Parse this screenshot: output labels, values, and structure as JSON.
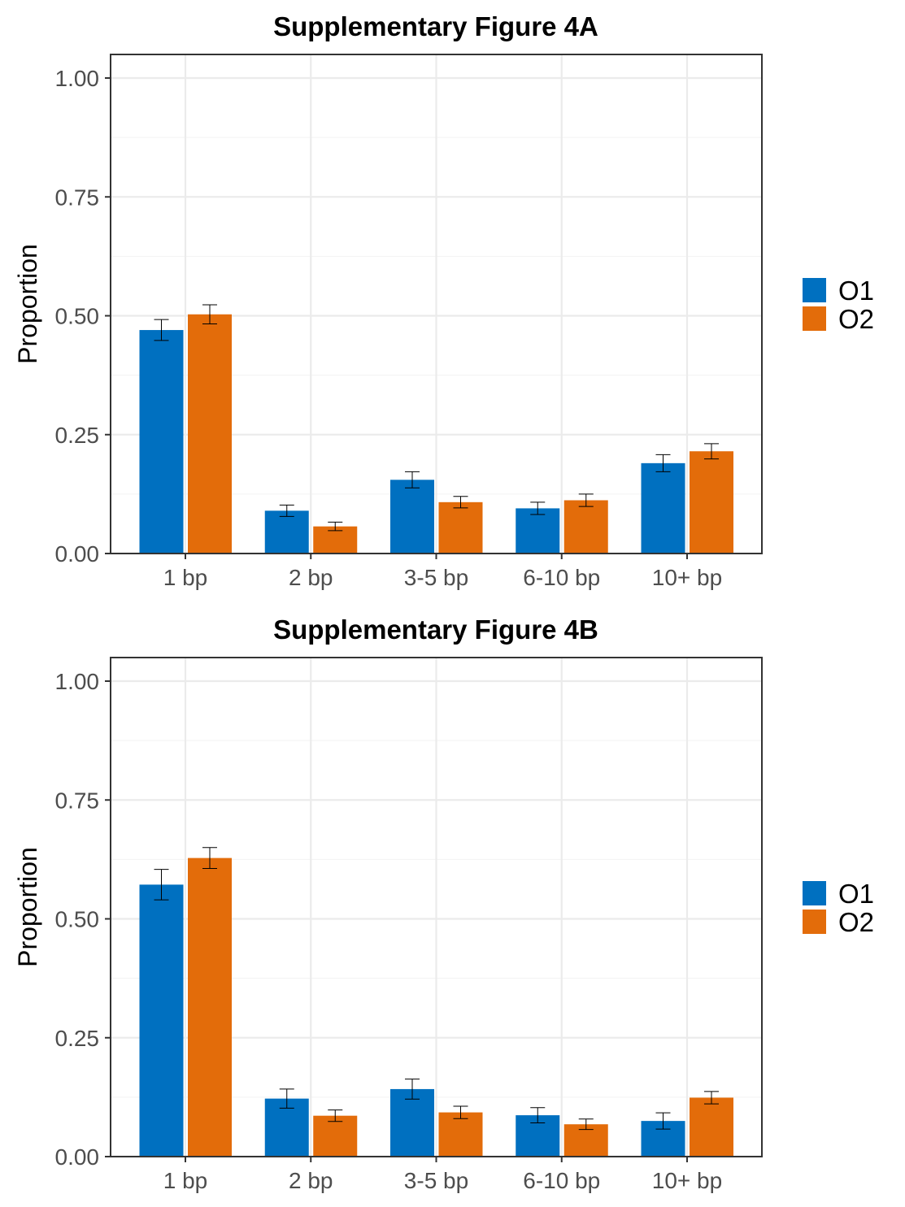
{
  "chart_data": [
    {
      "type": "bar",
      "title": "Supplementary Figure 4A",
      "xlabel": "",
      "ylabel": "Proportion",
      "ylim": [
        0,
        1.05
      ],
      "yticks": [
        "0.00",
        "0.25",
        "0.50",
        "0.75",
        "1.00"
      ],
      "categories": [
        "1 bp",
        "2 bp",
        "3-5 bp",
        "6-10 bp",
        "10+ bp"
      ],
      "grid": true,
      "legend_position": "right",
      "series": [
        {
          "name": "O1",
          "color": "#0070c0",
          "values": [
            0.47,
            0.09,
            0.155,
            0.095,
            0.19
          ],
          "err_low": [
            0.448,
            0.078,
            0.138,
            0.082,
            0.172
          ],
          "err_high": [
            0.492,
            0.102,
            0.172,
            0.108,
            0.208
          ]
        },
        {
          "name": "O2",
          "color": "#e36c0a",
          "values": [
            0.503,
            0.057,
            0.108,
            0.112,
            0.215
          ],
          "err_low": [
            0.483,
            0.048,
            0.096,
            0.099,
            0.199
          ],
          "err_high": [
            0.523,
            0.066,
            0.12,
            0.125,
            0.231
          ]
        }
      ]
    },
    {
      "type": "bar",
      "title": "Supplementary Figure 4B",
      "xlabel": "",
      "ylabel": "Proportion",
      "ylim": [
        0,
        1.05
      ],
      "yticks": [
        "0.00",
        "0.25",
        "0.50",
        "0.75",
        "1.00"
      ],
      "categories": [
        "1 bp",
        "2 bp",
        "3-5 bp",
        "6-10 bp",
        "10+ bp"
      ],
      "grid": true,
      "legend_position": "right",
      "series": [
        {
          "name": "O1",
          "color": "#0070c0",
          "values": [
            0.572,
            0.122,
            0.142,
            0.087,
            0.075
          ],
          "err_low": [
            0.54,
            0.102,
            0.121,
            0.071,
            0.058
          ],
          "err_high": [
            0.604,
            0.142,
            0.163,
            0.103,
            0.092
          ]
        },
        {
          "name": "O2",
          "color": "#e36c0a",
          "values": [
            0.628,
            0.086,
            0.093,
            0.068,
            0.124
          ],
          "err_low": [
            0.606,
            0.074,
            0.08,
            0.057,
            0.111
          ],
          "err_high": [
            0.65,
            0.098,
            0.106,
            0.079,
            0.137
          ]
        }
      ]
    }
  ]
}
